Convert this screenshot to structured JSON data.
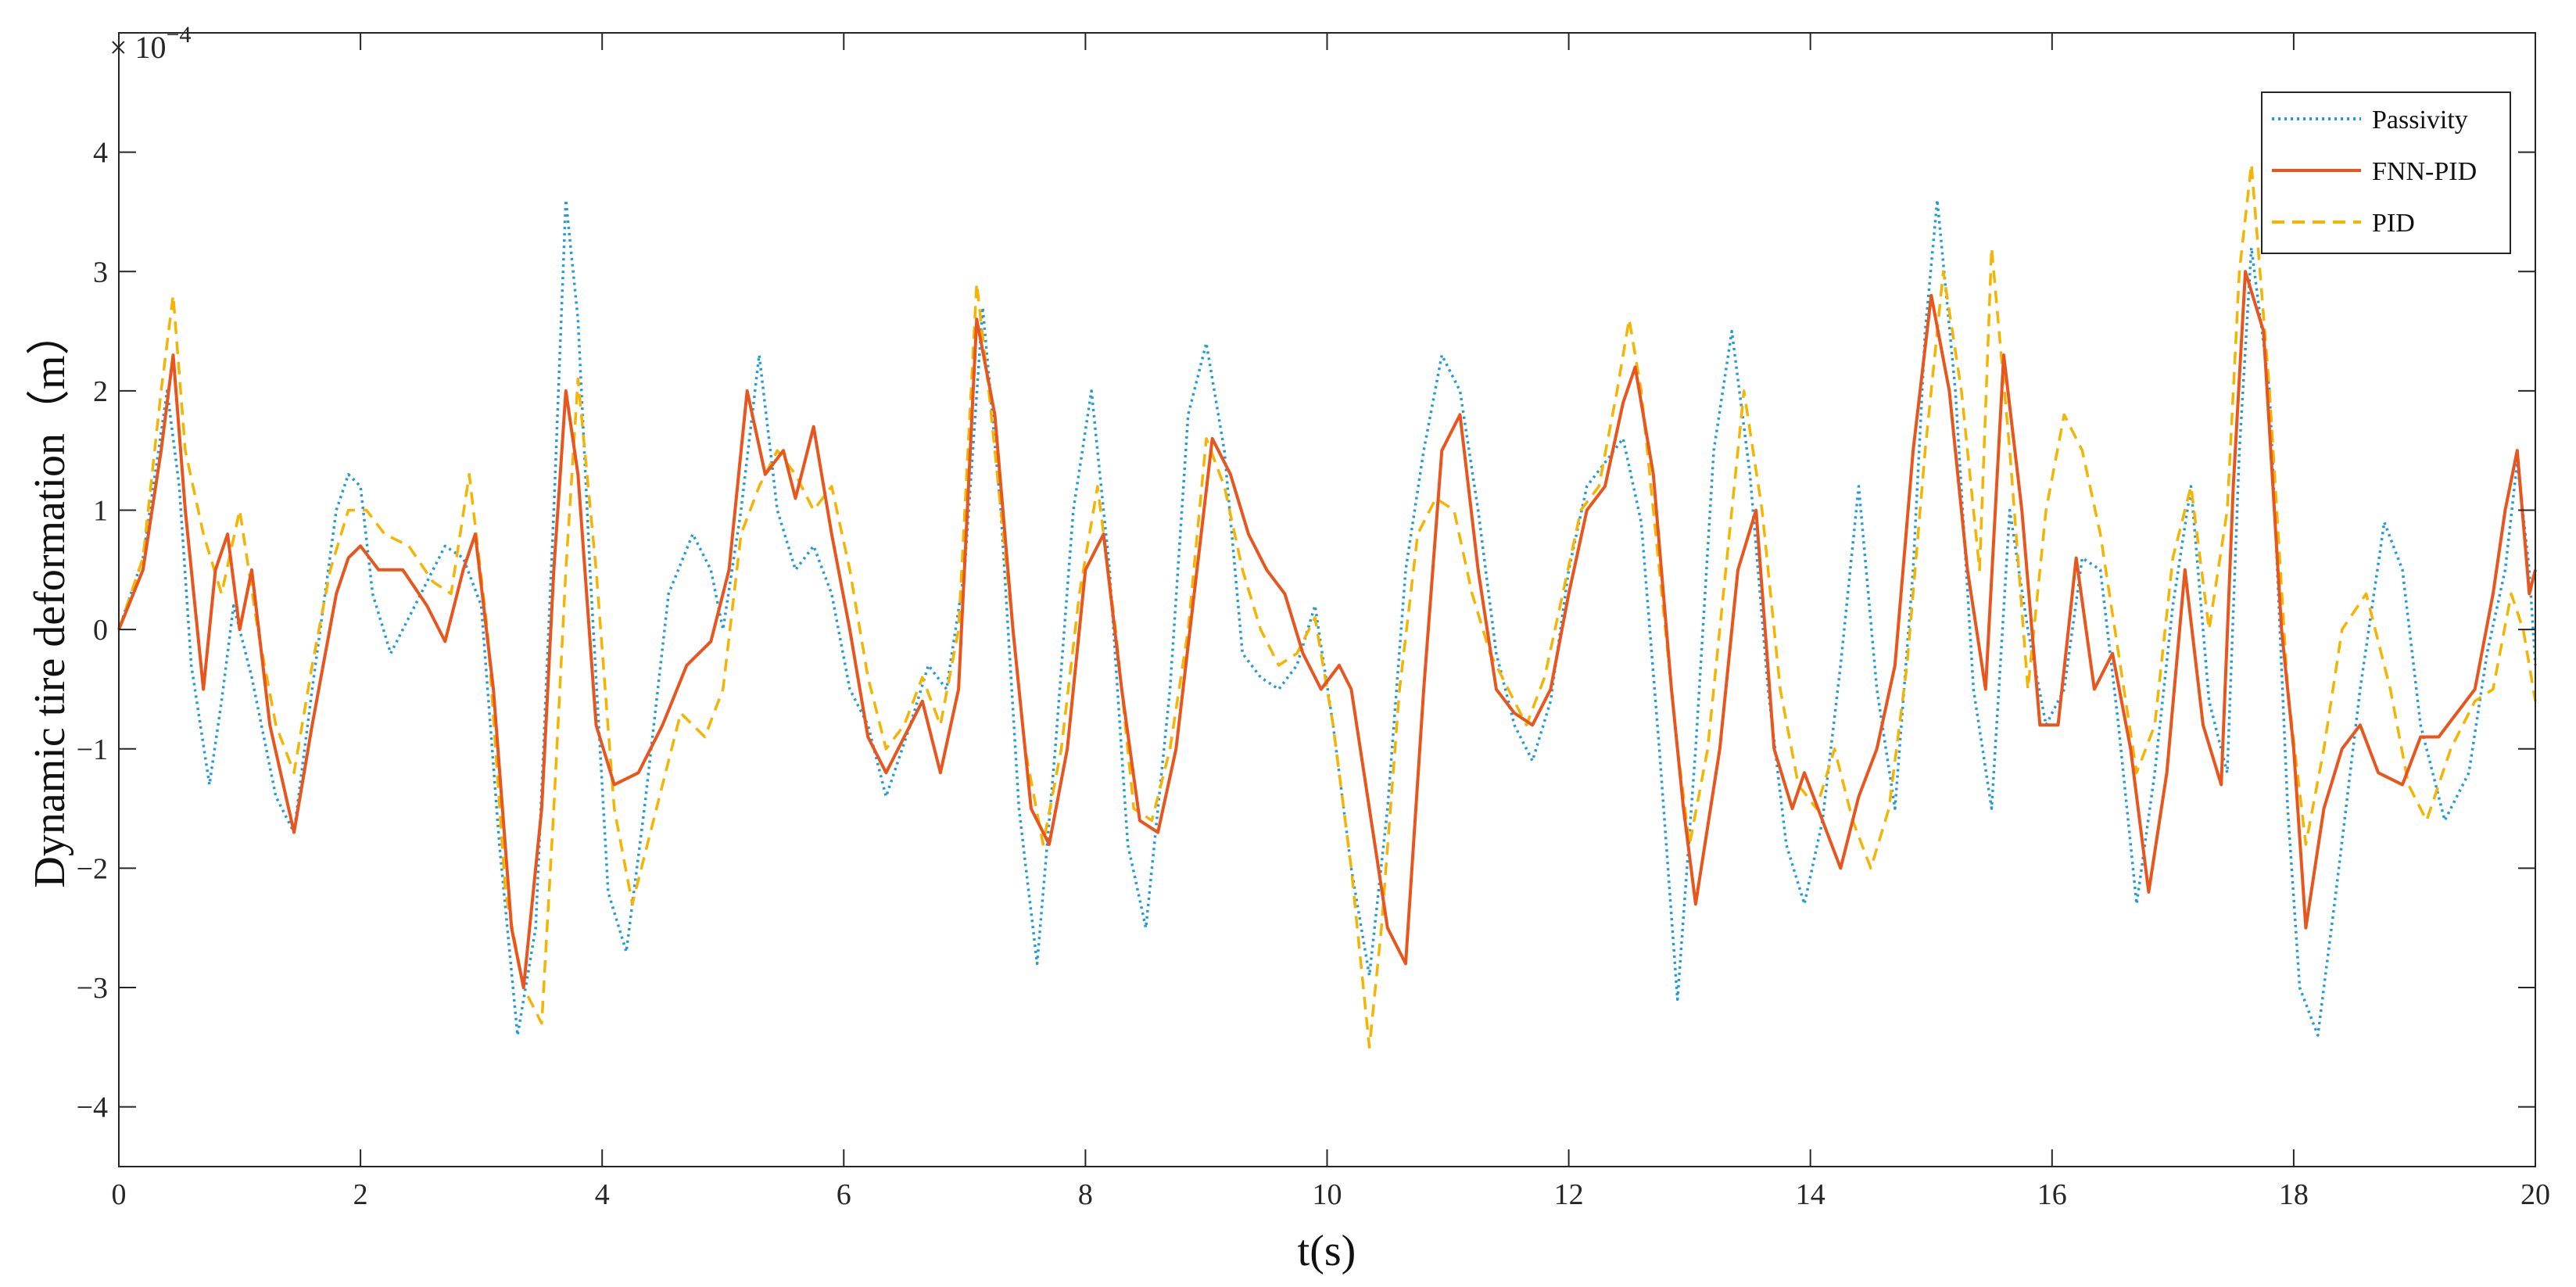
{
  "chart_data": {
    "type": "line",
    "title": "",
    "xlabel": "t(s)",
    "ylabel": "Dynamic tire deformation（m）",
    "y_multiplier": {
      "prefix": "× 10",
      "exponent": "−4"
    },
    "xlim": [
      0,
      20
    ],
    "ylim": [
      -4.5,
      5
    ],
    "x_ticks": [
      0,
      2,
      4,
      6,
      8,
      10,
      12,
      14,
      16,
      18,
      20
    ],
    "x_tick_labels": [
      "0",
      "2",
      "4",
      "6",
      "8",
      "10",
      "12",
      "14",
      "16",
      "18",
      "20"
    ],
    "y_ticks": [
      -4,
      -3,
      -2,
      -1,
      0,
      1,
      2,
      3,
      4
    ],
    "y_tick_labels": [
      "−4",
      "−3",
      "−2",
      "−1",
      "0",
      "1",
      "2",
      "3",
      "4"
    ],
    "grid": false,
    "legend_position": "top-right",
    "series": [
      {
        "name": "Passivity",
        "color": "#1f9bd7",
        "style": "dotted",
        "x": [
          0,
          0.2,
          0.4,
          0.5,
          0.6,
          0.75,
          0.85,
          0.95,
          1.1,
          1.3,
          1.45,
          1.6,
          1.8,
          1.9,
          2.0,
          2.1,
          2.25,
          2.5,
          2.7,
          2.85,
          3.0,
          3.15,
          3.3,
          3.45,
          3.6,
          3.7,
          3.8,
          3.9,
          4.05,
          4.2,
          4.35,
          4.55,
          4.75,
          4.9,
          5.0,
          5.15,
          5.3,
          5.45,
          5.6,
          5.75,
          5.9,
          6.05,
          6.2,
          6.35,
          6.55,
          6.7,
          6.85,
          7.0,
          7.15,
          7.3,
          7.45,
          7.6,
          7.75,
          7.9,
          8.05,
          8.2,
          8.35,
          8.5,
          8.7,
          8.85,
          9.0,
          9.15,
          9.3,
          9.45,
          9.6,
          9.75,
          9.9,
          10.05,
          10.2,
          10.35,
          10.5,
          10.65,
          10.8,
          10.95,
          11.1,
          11.25,
          11.4,
          11.55,
          11.7,
          11.85,
          12.0,
          12.15,
          12.3,
          12.45,
          12.6,
          12.75,
          12.9,
          13.05,
          13.2,
          13.35,
          13.5,
          13.65,
          13.8,
          13.95,
          14.1,
          14.25,
          14.4,
          14.55,
          14.7,
          14.85,
          14.95,
          15.05,
          15.2,
          15.35,
          15.5,
          15.65,
          15.8,
          15.95,
          16.1,
          16.25,
          16.4,
          16.55,
          16.7,
          16.85,
          17.0,
          17.15,
          17.3,
          17.45,
          17.55,
          17.65,
          17.8,
          17.95,
          18.05,
          18.2,
          18.35,
          18.55,
          18.75,
          18.9,
          19.05,
          19.25,
          19.45,
          19.6,
          19.75,
          19.85,
          19.95,
          20.0
        ],
        "values": [
          0.0,
          0.6,
          2.0,
          1.2,
          -0.3,
          -1.3,
          -0.6,
          0.2,
          -0.4,
          -1.4,
          -1.7,
          -0.5,
          1.0,
          1.3,
          1.2,
          0.3,
          -0.2,
          0.3,
          0.7,
          0.6,
          0.2,
          -1.8,
          -3.4,
          -2.5,
          1.0,
          3.6,
          2.6,
          0.5,
          -2.2,
          -2.7,
          -1.5,
          0.3,
          0.8,
          0.5,
          0.0,
          1.0,
          2.3,
          1.0,
          0.5,
          0.7,
          0.3,
          -0.5,
          -0.8,
          -1.4,
          -0.8,
          -0.3,
          -0.5,
          0.5,
          2.7,
          1.0,
          -1.5,
          -2.8,
          -1.0,
          1.0,
          2.0,
          0.5,
          -1.8,
          -2.5,
          -0.5,
          1.8,
          2.4,
          1.5,
          -0.2,
          -0.4,
          -0.5,
          -0.3,
          0.2,
          -0.8,
          -2.0,
          -2.9,
          -1.5,
          0.5,
          1.5,
          2.3,
          2.0,
          1.0,
          -0.2,
          -0.8,
          -1.1,
          -0.6,
          0.5,
          1.2,
          1.4,
          1.6,
          0.9,
          -1.0,
          -3.1,
          -1.0,
          1.5,
          2.5,
          1.3,
          -0.5,
          -1.8,
          -2.3,
          -1.6,
          -0.3,
          1.2,
          -0.5,
          -1.5,
          0.5,
          2.5,
          3.6,
          2.0,
          -0.5,
          -1.5,
          1.0,
          0.0,
          -0.8,
          -0.5,
          0.6,
          0.5,
          -0.8,
          -2.3,
          -1.2,
          0.2,
          1.2,
          -0.6,
          -1.2,
          1.5,
          3.2,
          2.0,
          -1.5,
          -3.0,
          -3.4,
          -2.2,
          -0.5,
          0.9,
          0.5,
          -0.8,
          -1.6,
          -1.2,
          -0.2,
          0.5,
          1.4,
          0.5,
          -0.3
        ]
      },
      {
        "name": "FNN-PID",
        "color": "#e8561d",
        "style": "solid",
        "x": [
          0,
          0.2,
          0.35,
          0.45,
          0.55,
          0.7,
          0.8,
          0.9,
          1.0,
          1.1,
          1.25,
          1.45,
          1.6,
          1.8,
          1.9,
          2.0,
          2.15,
          2.35,
          2.55,
          2.7,
          2.85,
          2.95,
          3.1,
          3.25,
          3.35,
          3.5,
          3.6,
          3.7,
          3.8,
          3.95,
          4.1,
          4.3,
          4.5,
          4.7,
          4.9,
          5.05,
          5.2,
          5.35,
          5.5,
          5.6,
          5.75,
          5.9,
          6.05,
          6.2,
          6.35,
          6.5,
          6.65,
          6.8,
          6.95,
          7.1,
          7.25,
          7.4,
          7.55,
          7.7,
          7.85,
          8.0,
          8.15,
          8.3,
          8.45,
          8.6,
          8.75,
          8.9,
          9.05,
          9.2,
          9.35,
          9.5,
          9.65,
          9.8,
          9.95,
          10.1,
          10.2,
          10.35,
          10.5,
          10.65,
          10.8,
          10.95,
          11.1,
          11.25,
          11.4,
          11.55,
          11.7,
          11.85,
          12.0,
          12.15,
          12.3,
          12.45,
          12.55,
          12.7,
          12.85,
          12.95,
          13.05,
          13.25,
          13.4,
          13.55,
          13.7,
          13.85,
          13.95,
          14.1,
          14.25,
          14.4,
          14.55,
          14.7,
          14.85,
          15.0,
          15.15,
          15.3,
          15.45,
          15.6,
          15.75,
          15.9,
          16.05,
          16.2,
          16.35,
          16.5,
          16.65,
          16.8,
          16.95,
          17.1,
          17.25,
          17.4,
          17.5,
          17.6,
          17.75,
          17.9,
          18.0,
          18.1,
          18.25,
          18.4,
          18.55,
          18.7,
          18.9,
          19.05,
          19.2,
          19.35,
          19.5,
          19.65,
          19.75,
          19.85,
          19.95,
          20.0
        ],
        "values": [
          0.0,
          0.5,
          1.5,
          2.3,
          1.0,
          -0.5,
          0.5,
          0.8,
          0.0,
          0.5,
          -0.8,
          -1.7,
          -0.8,
          0.3,
          0.6,
          0.7,
          0.5,
          0.5,
          0.2,
          -0.1,
          0.5,
          0.8,
          -0.5,
          -2.5,
          -3.0,
          -1.5,
          0.5,
          2.0,
          1.3,
          -0.8,
          -1.3,
          -1.2,
          -0.8,
          -0.3,
          -0.1,
          0.5,
          2.0,
          1.3,
          1.5,
          1.1,
          1.7,
          0.8,
          0.0,
          -0.9,
          -1.2,
          -0.9,
          -0.6,
          -1.2,
          -0.5,
          2.6,
          1.8,
          0.0,
          -1.5,
          -1.8,
          -1.0,
          0.5,
          0.8,
          -0.5,
          -1.6,
          -1.7,
          -1.0,
          0.3,
          1.6,
          1.3,
          0.8,
          0.5,
          0.3,
          -0.2,
          -0.5,
          -0.3,
          -0.5,
          -1.5,
          -2.5,
          -2.8,
          -0.5,
          1.5,
          1.8,
          0.5,
          -0.5,
          -0.7,
          -0.8,
          -0.5,
          0.3,
          1.0,
          1.2,
          1.9,
          2.2,
          1.3,
          -0.5,
          -1.5,
          -2.3,
          -1.0,
          0.5,
          1.0,
          -1.0,
          -1.5,
          -1.2,
          -1.6,
          -2.0,
          -1.4,
          -1.0,
          -0.3,
          1.5,
          2.8,
          2.0,
          0.5,
          -0.5,
          2.3,
          1.0,
          -0.8,
          -0.8,
          0.6,
          -0.5,
          -0.2,
          -1.0,
          -2.2,
          -1.2,
          0.5,
          -0.8,
          -1.3,
          1.2,
          3.0,
          2.5,
          0.0,
          -1.0,
          -2.5,
          -1.5,
          -1.0,
          -0.8,
          -1.2,
          -1.3,
          -0.9,
          -0.9,
          -0.7,
          -0.5,
          0.3,
          1.0,
          1.5,
          0.3,
          0.5
        ]
      },
      {
        "name": "PID",
        "color": "#f4b400",
        "style": "dashed",
        "x": [
          0,
          0.2,
          0.35,
          0.45,
          0.55,
          0.7,
          0.85,
          1.0,
          1.15,
          1.3,
          1.45,
          1.6,
          1.75,
          1.9,
          2.05,
          2.2,
          2.4,
          2.6,
          2.75,
          2.9,
          3.05,
          3.2,
          3.35,
          3.5,
          3.6,
          3.7,
          3.8,
          3.95,
          4.1,
          4.25,
          4.45,
          4.65,
          4.85,
          5.0,
          5.15,
          5.3,
          5.45,
          5.6,
          5.75,
          5.9,
          6.05,
          6.2,
          6.35,
          6.5,
          6.65,
          6.8,
          6.95,
          7.1,
          7.2,
          7.35,
          7.5,
          7.65,
          7.8,
          7.95,
          8.1,
          8.25,
          8.4,
          8.55,
          8.7,
          8.85,
          9.0,
          9.15,
          9.3,
          9.45,
          9.6,
          9.75,
          9.9,
          10.05,
          10.2,
          10.35,
          10.45,
          10.6,
          10.75,
          10.9,
          11.05,
          11.2,
          11.35,
          11.5,
          11.65,
          11.8,
          11.95,
          12.1,
          12.25,
          12.4,
          12.5,
          12.6,
          12.75,
          12.9,
          13.0,
          13.15,
          13.3,
          13.45,
          13.6,
          13.75,
          13.9,
          14.05,
          14.2,
          14.35,
          14.5,
          14.65,
          14.8,
          14.95,
          15.1,
          15.25,
          15.4,
          15.5,
          15.65,
          15.8,
          15.95,
          16.1,
          16.25,
          16.4,
          16.55,
          16.7,
          16.85,
          17.0,
          17.15,
          17.3,
          17.45,
          17.55,
          17.65,
          17.8,
          17.95,
          18.1,
          18.25,
          18.4,
          18.6,
          18.8,
          18.95,
          19.1,
          19.3,
          19.5,
          19.65,
          19.8,
          19.9,
          20.0
        ],
        "values": [
          0.0,
          0.6,
          2.0,
          2.8,
          1.5,
          0.8,
          0.3,
          1.0,
          0.0,
          -0.8,
          -1.2,
          -0.3,
          0.5,
          1.0,
          1.0,
          0.8,
          0.7,
          0.4,
          0.3,
          1.3,
          0.0,
          -2.2,
          -3.0,
          -3.3,
          -1.5,
          0.5,
          2.1,
          0.5,
          -1.5,
          -2.3,
          -1.5,
          -0.7,
          -0.9,
          -0.5,
          0.8,
          1.2,
          1.5,
          1.3,
          1.0,
          1.2,
          0.5,
          -0.4,
          -1.0,
          -0.8,
          -0.4,
          -0.8,
          0.0,
          2.9,
          2.0,
          0.5,
          -1.0,
          -1.8,
          -1.0,
          0.3,
          1.2,
          0.0,
          -1.5,
          -1.6,
          -1.0,
          0.0,
          1.6,
          1.2,
          0.5,
          0.0,
          -0.3,
          -0.2,
          0.1,
          -0.8,
          -2.0,
          -3.5,
          -2.5,
          -0.5,
          0.8,
          1.1,
          1.0,
          0.3,
          -0.2,
          -0.5,
          -0.8,
          -0.4,
          0.3,
          1.0,
          1.2,
          2.0,
          2.6,
          2.0,
          0.5,
          -1.0,
          -1.8,
          -1.0,
          0.5,
          2.0,
          1.0,
          -0.5,
          -1.3,
          -1.5,
          -1.0,
          -1.6,
          -2.0,
          -1.5,
          -0.3,
          1.5,
          3.0,
          2.0,
          0.5,
          3.2,
          1.5,
          -0.5,
          1.0,
          1.8,
          1.5,
          0.8,
          -0.2,
          -1.2,
          -0.8,
          0.6,
          1.2,
          0.0,
          1.0,
          3.0,
          3.9,
          2.0,
          -0.5,
          -1.8,
          -1.0,
          0.0,
          0.3,
          -0.5,
          -1.3,
          -1.6,
          -1.0,
          -0.6,
          -0.5,
          0.3,
          0.0,
          -0.6
        ]
      }
    ]
  }
}
